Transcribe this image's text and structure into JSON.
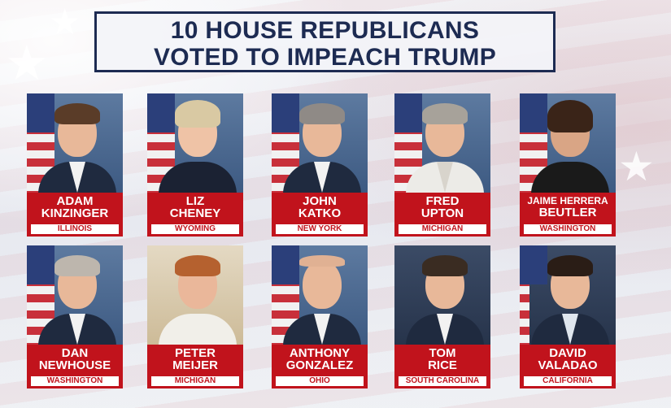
{
  "headline": {
    "line1": "10 HOUSE REPUBLICANS",
    "line2": "VOTED TO IMPEACH TRUMP"
  },
  "members": [
    {
      "first": "ADAM",
      "last": "KINZINGER",
      "state": "ILLINOIS"
    },
    {
      "first": "LIZ",
      "last": "CHENEY",
      "state": "WYOMING"
    },
    {
      "first": "JOHN",
      "last": "KATKO",
      "state": "NEW YORK"
    },
    {
      "first": "FRED",
      "last": "UPTON",
      "state": "MICHIGAN"
    },
    {
      "first": "JAIME HERRERA",
      "last": "BEUTLER",
      "state": "WASHINGTON"
    },
    {
      "first": "DAN",
      "last": "NEWHOUSE",
      "state": "WASHINGTON"
    },
    {
      "first": "PETER",
      "last": "MEIJER",
      "state": "MICHIGAN"
    },
    {
      "first": "ANTHONY",
      "last": "GONZALEZ",
      "state": "OHIO"
    },
    {
      "first": "TOM",
      "last": "RICE",
      "state": "SOUTH CAROLINA"
    },
    {
      "first": "DAVID",
      "last": "VALADAO",
      "state": "CALIFORNIA"
    }
  ],
  "colors": {
    "headline": "#1d2b52",
    "label_red": "#c1131c",
    "state_bg": "#ffffff"
  }
}
